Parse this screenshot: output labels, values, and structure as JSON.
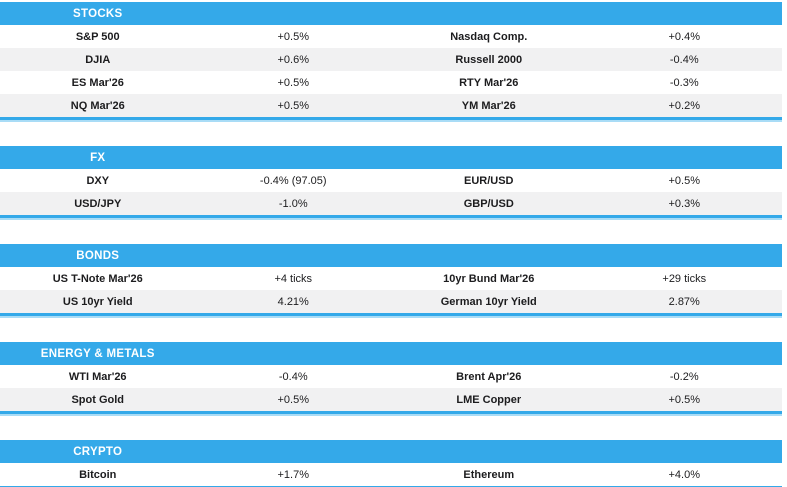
{
  "colors": {
    "accent": "#34a9e9",
    "stripe": "#f1f1f2",
    "text": "#1c1c1e",
    "header_text": "#ffffff"
  },
  "sections": [
    {
      "title": "STOCKS",
      "rows": [
        {
          "left_label": "S&P 500",
          "left_value": "+0.5%",
          "right_label": "Nasdaq Comp.",
          "right_value": "+0.4%"
        },
        {
          "left_label": "DJIA",
          "left_value": "+0.6%",
          "right_label": "Russell 2000",
          "right_value": "-0.4%"
        },
        {
          "left_label": "ES Mar'26",
          "left_value": "+0.5%",
          "right_label": "RTY Mar'26",
          "right_value": "-0.3%"
        },
        {
          "left_label": "NQ Mar'26",
          "left_value": "+0.5%",
          "right_label": "YM Mar'26",
          "right_value": "+0.2%"
        }
      ]
    },
    {
      "title": "FX",
      "rows": [
        {
          "left_label": "DXY",
          "left_value": "-0.4% (97.05)",
          "right_label": "EUR/USD",
          "right_value": "+0.5%"
        },
        {
          "left_label": "USD/JPY",
          "left_value": "-1.0%",
          "right_label": "GBP/USD",
          "right_value": "+0.3%"
        }
      ]
    },
    {
      "title": "BONDS",
      "rows": [
        {
          "left_label": "US T-Note Mar'26",
          "left_value": "+4 ticks",
          "right_label": "10yr Bund Mar'26",
          "right_value": "+29 ticks"
        },
        {
          "left_label": "US 10yr Yield",
          "left_value": "4.21%",
          "right_label": "German 10yr Yield",
          "right_value": "2.87%"
        }
      ]
    },
    {
      "title": "ENERGY & METALS",
      "rows": [
        {
          "left_label": "WTI Mar'26",
          "left_value": "-0.4%",
          "right_label": "Brent Apr'26",
          "right_value": "-0.2%"
        },
        {
          "left_label": "Spot Gold",
          "left_value": "+0.5%",
          "right_label": "LME Copper",
          "right_value": "+0.5%"
        }
      ]
    },
    {
      "title": "CRYPTO",
      "rows": [
        {
          "left_label": "Bitcoin",
          "left_value": "+1.7%",
          "right_label": "Ethereum",
          "right_value": "+4.0%"
        }
      ]
    }
  ]
}
